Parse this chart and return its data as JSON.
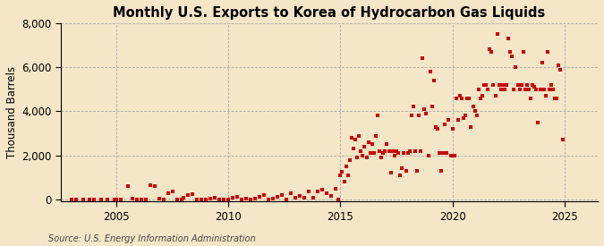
{
  "title": "Monthly U.S. Exports to Korea of Hydrocarbon Gas Liquids",
  "ylabel": "Thousand Barrels",
  "source": "Source: U.S. Energy Information Administration",
  "outer_bg": "#f5e6c8",
  "inner_bg": "#f5e6c8",
  "dot_color": "#cc0000",
  "xlim": [
    2002.5,
    2026.5
  ],
  "ylim": [
    -100,
    8000
  ],
  "yticks": [
    0,
    2000,
    4000,
    6000,
    8000
  ],
  "xticks": [
    2005,
    2010,
    2015,
    2020,
    2025
  ],
  "data": [
    [
      2003.0,
      5
    ],
    [
      2003.2,
      2
    ],
    [
      2003.5,
      0
    ],
    [
      2003.8,
      3
    ],
    [
      2004.0,
      5
    ],
    [
      2004.3,
      2
    ],
    [
      2004.6,
      3
    ],
    [
      2004.9,
      0
    ],
    [
      2005.0,
      10
    ],
    [
      2005.2,
      5
    ],
    [
      2005.5,
      600
    ],
    [
      2005.7,
      50
    ],
    [
      2005.9,
      10
    ],
    [
      2006.1,
      5
    ],
    [
      2006.3,
      0
    ],
    [
      2006.5,
      650
    ],
    [
      2006.7,
      600
    ],
    [
      2006.9,
      30
    ],
    [
      2007.1,
      10
    ],
    [
      2007.3,
      300
    ],
    [
      2007.5,
      350
    ],
    [
      2007.7,
      0
    ],
    [
      2007.9,
      5
    ],
    [
      2008.0,
      80
    ],
    [
      2008.2,
      200
    ],
    [
      2008.4,
      250
    ],
    [
      2008.6,
      10
    ],
    [
      2008.8,
      5
    ],
    [
      2009.0,
      0
    ],
    [
      2009.2,
      30
    ],
    [
      2009.4,
      80
    ],
    [
      2009.6,
      0
    ],
    [
      2009.8,
      5
    ],
    [
      2010.0,
      0
    ],
    [
      2010.2,
      80
    ],
    [
      2010.4,
      120
    ],
    [
      2010.6,
      5
    ],
    [
      2010.8,
      40
    ],
    [
      2011.0,
      0
    ],
    [
      2011.2,
      40
    ],
    [
      2011.4,
      100
    ],
    [
      2011.6,
      180
    ],
    [
      2011.8,
      10
    ],
    [
      2012.0,
      40
    ],
    [
      2012.2,
      100
    ],
    [
      2012.4,
      200
    ],
    [
      2012.6,
      10
    ],
    [
      2012.8,
      280
    ],
    [
      2013.0,
      80
    ],
    [
      2013.2,
      150
    ],
    [
      2013.4,
      80
    ],
    [
      2013.6,
      350
    ],
    [
      2013.8,
      80
    ],
    [
      2014.0,
      350
    ],
    [
      2014.2,
      450
    ],
    [
      2014.4,
      280
    ],
    [
      2014.6,
      150
    ],
    [
      2014.8,
      500
    ],
    [
      2014.92,
      0
    ],
    [
      2015.0,
      1100
    ],
    [
      2015.08,
      1250
    ],
    [
      2015.17,
      800
    ],
    [
      2015.25,
      1500
    ],
    [
      2015.33,
      1100
    ],
    [
      2015.42,
      1800
    ],
    [
      2015.5,
      2800
    ],
    [
      2015.58,
      2300
    ],
    [
      2015.67,
      2700
    ],
    [
      2015.75,
      1900
    ],
    [
      2015.83,
      2900
    ],
    [
      2015.92,
      2200
    ],
    [
      2016.0,
      2000
    ],
    [
      2016.08,
      2400
    ],
    [
      2016.17,
      1900
    ],
    [
      2016.25,
      2600
    ],
    [
      2016.33,
      2100
    ],
    [
      2016.42,
      2500
    ],
    [
      2016.5,
      2100
    ],
    [
      2016.58,
      2900
    ],
    [
      2016.67,
      3800
    ],
    [
      2016.75,
      2200
    ],
    [
      2016.83,
      1900
    ],
    [
      2016.92,
      2100
    ],
    [
      2017.0,
      2200
    ],
    [
      2017.08,
      2500
    ],
    [
      2017.17,
      2200
    ],
    [
      2017.25,
      1200
    ],
    [
      2017.33,
      2200
    ],
    [
      2017.42,
      2000
    ],
    [
      2017.5,
      2200
    ],
    [
      2017.58,
      2100
    ],
    [
      2017.67,
      1100
    ],
    [
      2017.75,
      1400
    ],
    [
      2017.83,
      2100
    ],
    [
      2017.92,
      1300
    ],
    [
      2018.0,
      2100
    ],
    [
      2018.08,
      2200
    ],
    [
      2018.17,
      3800
    ],
    [
      2018.25,
      4200
    ],
    [
      2018.33,
      2200
    ],
    [
      2018.42,
      1300
    ],
    [
      2018.5,
      3800
    ],
    [
      2018.58,
      2200
    ],
    [
      2018.67,
      6400
    ],
    [
      2018.75,
      4100
    ],
    [
      2018.83,
      3900
    ],
    [
      2018.92,
      2000
    ],
    [
      2019.0,
      5800
    ],
    [
      2019.08,
      4200
    ],
    [
      2019.17,
      5400
    ],
    [
      2019.25,
      3300
    ],
    [
      2019.33,
      3200
    ],
    [
      2019.42,
      2100
    ],
    [
      2019.5,
      1300
    ],
    [
      2019.58,
      2100
    ],
    [
      2019.67,
      3400
    ],
    [
      2019.75,
      2100
    ],
    [
      2019.83,
      3600
    ],
    [
      2019.92,
      2000
    ],
    [
      2020.0,
      3200
    ],
    [
      2020.08,
      2000
    ],
    [
      2020.17,
      4600
    ],
    [
      2020.25,
      3600
    ],
    [
      2020.33,
      4700
    ],
    [
      2020.42,
      4600
    ],
    [
      2020.5,
      3700
    ],
    [
      2020.58,
      3800
    ],
    [
      2020.67,
      4600
    ],
    [
      2020.75,
      4600
    ],
    [
      2020.83,
      3300
    ],
    [
      2020.92,
      4200
    ],
    [
      2021.0,
      4000
    ],
    [
      2021.08,
      3800
    ],
    [
      2021.17,
      5000
    ],
    [
      2021.25,
      4600
    ],
    [
      2021.33,
      4700
    ],
    [
      2021.42,
      5200
    ],
    [
      2021.5,
      5200
    ],
    [
      2021.58,
      5000
    ],
    [
      2021.67,
      6800
    ],
    [
      2021.75,
      6700
    ],
    [
      2021.83,
      5200
    ],
    [
      2021.92,
      4700
    ],
    [
      2022.0,
      7500
    ],
    [
      2022.08,
      5200
    ],
    [
      2022.17,
      5000
    ],
    [
      2022.25,
      5200
    ],
    [
      2022.33,
      5000
    ],
    [
      2022.42,
      5200
    ],
    [
      2022.5,
      7300
    ],
    [
      2022.58,
      6700
    ],
    [
      2022.67,
      6500
    ],
    [
      2022.75,
      5000
    ],
    [
      2022.83,
      6000
    ],
    [
      2022.92,
      5200
    ],
    [
      2023.0,
      5000
    ],
    [
      2023.08,
      5200
    ],
    [
      2023.17,
      6700
    ],
    [
      2023.25,
      5000
    ],
    [
      2023.33,
      5200
    ],
    [
      2023.42,
      5000
    ],
    [
      2023.5,
      4600
    ],
    [
      2023.58,
      5200
    ],
    [
      2023.67,
      5100
    ],
    [
      2023.75,
      5000
    ],
    [
      2023.83,
      3500
    ],
    [
      2023.92,
      5000
    ],
    [
      2024.0,
      6200
    ],
    [
      2024.08,
      5000
    ],
    [
      2024.17,
      4700
    ],
    [
      2024.25,
      6700
    ],
    [
      2024.33,
      5000
    ],
    [
      2024.42,
      5200
    ],
    [
      2024.5,
      5000
    ],
    [
      2024.58,
      4600
    ],
    [
      2024.67,
      4600
    ],
    [
      2024.75,
      6100
    ],
    [
      2024.83,
      5900
    ],
    [
      2024.92,
      2700
    ]
  ]
}
